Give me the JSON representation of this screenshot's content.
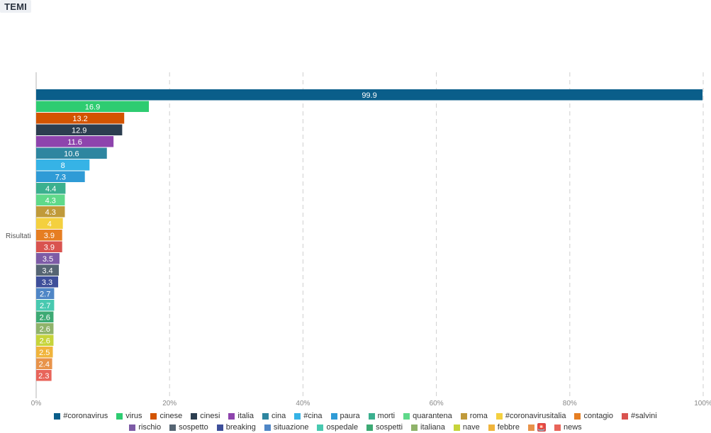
{
  "header": {
    "tag_label": "TEMI"
  },
  "chart_data": {
    "type": "bar",
    "orientation": "horizontal",
    "title": "",
    "xlabel": "",
    "ylabel": "Risultati",
    "xlim": [
      0,
      100
    ],
    "x_ticks": [
      "0%",
      "20%",
      "40%",
      "60%",
      "80%",
      "100%"
    ],
    "grid": true,
    "legend_position": "bottom",
    "series": [
      {
        "name": "#coronavirus",
        "value": 99.9,
        "label": "99.9",
        "color": "#0a5e8a"
      },
      {
        "name": "virus",
        "value": 16.9,
        "label": "16.9",
        "color": "#2ecc71"
      },
      {
        "name": "cinese",
        "value": 13.2,
        "label": "13.2",
        "color": "#d35400"
      },
      {
        "name": "cinesi",
        "value": 12.9,
        "label": "12.9",
        "color": "#2c3e50"
      },
      {
        "name": "italia",
        "value": 11.6,
        "label": "11.6",
        "color": "#8e44ad"
      },
      {
        "name": "cina",
        "value": 10.6,
        "label": "10.6",
        "color": "#2e86a0"
      },
      {
        "name": "#cina",
        "value": 8,
        "label": "8",
        "color": "#36b3e6"
      },
      {
        "name": "paura",
        "value": 7.3,
        "label": "7.3",
        "color": "#2f9bd6"
      },
      {
        "name": "morti",
        "value": 4.4,
        "label": "4.4",
        "color": "#3bb08f"
      },
      {
        "name": "quarantena",
        "value": 4.3,
        "label": "4.3",
        "color": "#5fd98a"
      },
      {
        "name": "roma",
        "value": 4.3,
        "label": "4.3",
        "color": "#c09a3a"
      },
      {
        "name": "#coronavirusitalia",
        "value": 4,
        "label": "4",
        "color": "#f4d03f"
      },
      {
        "name": "contagio",
        "value": 3.9,
        "label": "3.9",
        "color": "#e67e22"
      },
      {
        "name": "#salvini",
        "value": 3.9,
        "label": "3.9",
        "color": "#d9534f"
      },
      {
        "name": "rischio",
        "value": 3.5,
        "label": "3.5",
        "color": "#7d5ba6"
      },
      {
        "name": "sospetto",
        "value": 3.4,
        "label": "3.4",
        "color": "#566573"
      },
      {
        "name": "breaking",
        "value": 3.3,
        "label": "3.3",
        "color": "#3e4f9a"
      },
      {
        "name": "situazione",
        "value": 2.7,
        "label": "2.7",
        "color": "#4f86c6"
      },
      {
        "name": "ospedale",
        "value": 2.7,
        "label": "2.7",
        "color": "#48c9b0"
      },
      {
        "name": "sospetti",
        "value": 2.6,
        "label": "2.6",
        "color": "#3daa74"
      },
      {
        "name": "italiana",
        "value": 2.6,
        "label": "2.6",
        "color": "#8fb36a"
      },
      {
        "name": "nave",
        "value": 2.6,
        "label": "2.6",
        "color": "#c6d43a"
      },
      {
        "name": "febbre",
        "value": 2.5,
        "label": "2.5",
        "color": "#f0b43c"
      },
      {
        "name": "🚨",
        "value": 2.4,
        "label": "2.4",
        "color": "#e8934a"
      },
      {
        "name": "news",
        "value": 2.3,
        "label": "2.3",
        "color": "#e8645a"
      }
    ]
  },
  "legend": {
    "rows": [
      [
        "#coronavirus",
        "virus",
        "cinese",
        "cinesi",
        "italia",
        "cina",
        "#cina",
        "paura",
        "morti",
        "quarantena",
        "roma",
        "#coronavirusitalia",
        "contagio",
        "#salvini"
      ],
      [
        "rischio",
        "sospetto",
        "breaking",
        "situazione",
        "ospedale",
        "sospetti",
        "italiana",
        "nave",
        "febbre",
        "🚨",
        "news"
      ]
    ]
  }
}
